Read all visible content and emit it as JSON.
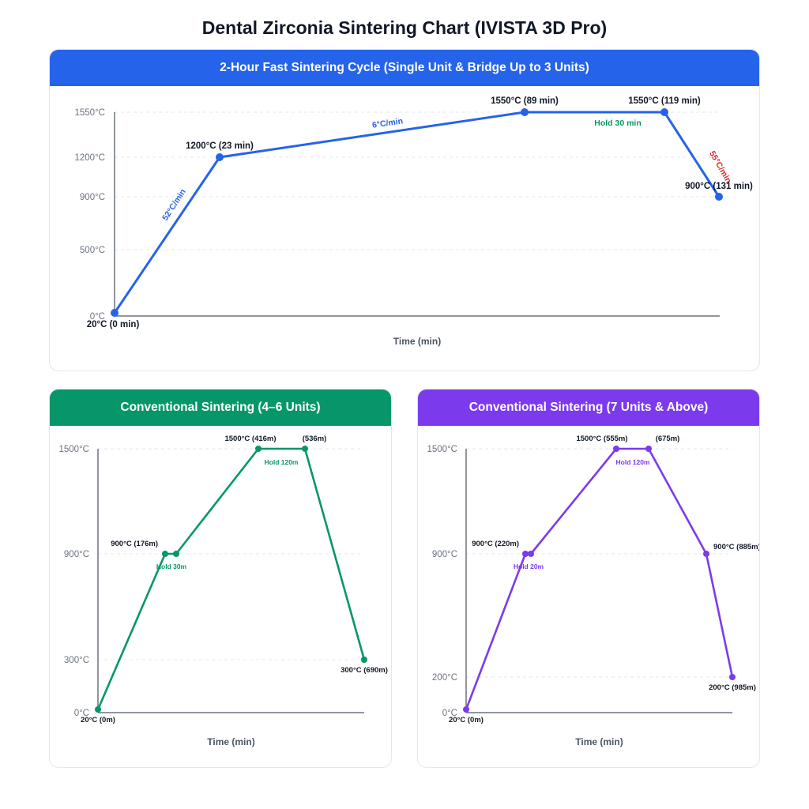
{
  "page": {
    "title": "Dental Zirconia Sintering Chart (IVISTA 3D Pro)"
  },
  "chart_data": [
    {
      "id": "fast",
      "type": "line",
      "title": "2-Hour Fast Sintering Cycle (Single Unit & Bridge Up to 3 Units)",
      "xlabel": "Time (min)",
      "ylabel": "",
      "color": "#2563eb",
      "xlim": [
        0,
        131
      ],
      "ylim": [
        0,
        1550
      ],
      "y_ticks": [
        {
          "value": 0,
          "label": "0°C"
        },
        {
          "value": 500,
          "label": "500°C"
        },
        {
          "value": 900,
          "label": "900°C"
        },
        {
          "value": 1200,
          "label": "1200°C"
        },
        {
          "value": 1550,
          "label": "1550°C"
        }
      ],
      "grid": "dashed horizontal",
      "points": [
        {
          "x": 0,
          "y": 20,
          "label": "20°C (0 min)"
        },
        {
          "x": 23,
          "y": 1200,
          "label": "1200°C (23 min)"
        },
        {
          "x": 89,
          "y": 1550,
          "label": "1550°C (89 min)"
        },
        {
          "x": 119,
          "y": 1550,
          "label": "1550°C (119 min)"
        },
        {
          "x": 131,
          "y": 900,
          "label": "900°C (131 min)"
        }
      ],
      "annotations": [
        {
          "text": "52°C/min",
          "color": "#2563eb"
        },
        {
          "text": "6°C/min",
          "color": "#2563eb"
        },
        {
          "text": "Hold 30 min",
          "color": "#079669"
        },
        {
          "text": "55°C/min",
          "color": "#dc2626"
        }
      ]
    },
    {
      "id": "conv46",
      "type": "line",
      "title": "Conventional Sintering (4–6 Units)",
      "xlabel": "Time (min)",
      "ylabel": "",
      "color": "#079669",
      "xlim": [
        0,
        690
      ],
      "ylim": [
        0,
        1500
      ],
      "y_ticks": [
        {
          "value": 0,
          "label": "0°C"
        },
        {
          "value": 300,
          "label": "300°C"
        },
        {
          "value": 900,
          "label": "900°C"
        },
        {
          "value": 1500,
          "label": "1500°C"
        }
      ],
      "grid": "dashed horizontal",
      "points": [
        {
          "x": 0,
          "y": 20,
          "label": "20°C (0m)"
        },
        {
          "x": 176,
          "y": 900,
          "label": "900°C (176m)"
        },
        {
          "x": 206,
          "y": 900,
          "label": ""
        },
        {
          "x": 416,
          "y": 1500,
          "label": "1500°C (416m)"
        },
        {
          "x": 536,
          "y": 1500,
          "label": "(536m)"
        },
        {
          "x": 690,
          "y": 300,
          "label": "300°C (690m)"
        }
      ],
      "annotations": [
        {
          "text": "Hold 30m",
          "color": "#079669"
        },
        {
          "text": "Hold 120m",
          "color": "#079669"
        }
      ]
    },
    {
      "id": "conv7",
      "type": "line",
      "title": "Conventional Sintering (7 Units & Above)",
      "xlabel": "Time (min)",
      "ylabel": "",
      "color": "#7c3aed",
      "xlim": [
        0,
        985
      ],
      "ylim": [
        0,
        1500
      ],
      "y_ticks": [
        {
          "value": 0,
          "label": "0°C"
        },
        {
          "value": 200,
          "label": "200°C"
        },
        {
          "value": 900,
          "label": "900°C"
        },
        {
          "value": 1500,
          "label": "1500°C"
        }
      ],
      "grid": "dashed horizontal",
      "points": [
        {
          "x": 0,
          "y": 20,
          "label": "20°C (0m)"
        },
        {
          "x": 220,
          "y": 900,
          "label": "900°C (220m)"
        },
        {
          "x": 240,
          "y": 900,
          "label": ""
        },
        {
          "x": 555,
          "y": 1500,
          "label": "1500°C (555m)"
        },
        {
          "x": 675,
          "y": 1500,
          "label": "(675m)"
        },
        {
          "x": 885,
          "y": 900,
          "label": "900°C (885m)"
        },
        {
          "x": 985,
          "y": 200,
          "label": "200°C (985m)"
        }
      ],
      "annotations": [
        {
          "text": "Hold 20m",
          "color": "#7c3aed"
        },
        {
          "text": "Hold 120m",
          "color": "#7c3aed"
        }
      ]
    }
  ]
}
